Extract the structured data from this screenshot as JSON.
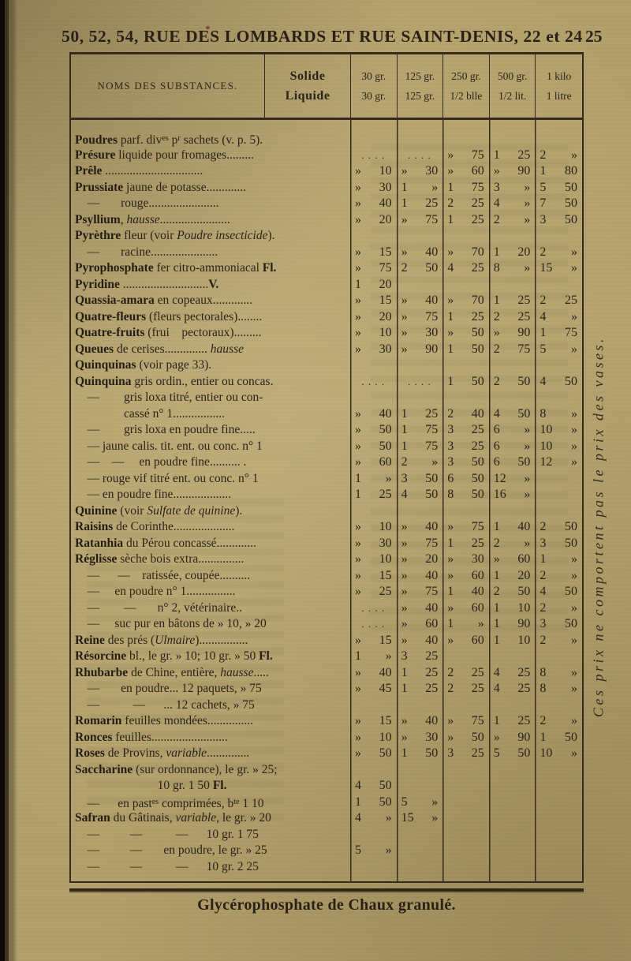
{
  "page": {
    "header": "50, 52, 54, RUE DES LOMBARDS ET RUE SAINT-DENIS, 22 et 24",
    "page_number": "25",
    "side_note": "Ces prix ne comportent pas le prix des vases.",
    "footer": "Glycérophosphate de Chaux granulé."
  },
  "colors": {
    "paper": "#b3a06b",
    "ink": "#2a231a"
  },
  "table": {
    "header": {
      "names_label": "NOMS DES SUBSTANCES.",
      "form_labels": [
        "Solide",
        "Liquide"
      ],
      "columns": [
        {
          "top": "30 gr.",
          "bottom": "30 gr."
        },
        {
          "top": "125 gr.",
          "bottom": "125 gr."
        },
        {
          "top": "250 gr.",
          "bottom": [
            {
              "t": "1/2 b"
            },
            {
              "t": "lle",
              "s": "sup"
            }
          ]
        },
        {
          "top": "500 gr.",
          "bottom": "1/2 lit."
        },
        {
          "top": "1 kilo",
          "bottom": "1 litre"
        }
      ]
    },
    "rows": [
      {
        "name": [
          {
            "t": "Poudres",
            "s": "b"
          },
          {
            "t": " parf. div"
          },
          {
            "t": "es",
            "s": "sup"
          },
          {
            "t": " p"
          },
          {
            "t": "r",
            "s": "sup"
          },
          {
            "t": " sachets (v. p. 5)."
          }
        ],
        "prices": [
          "",
          "",
          "",
          "",
          ""
        ]
      },
      {
        "name": [
          {
            "t": "Présure",
            "s": "b"
          },
          {
            "t": " liquide pour fromages........."
          }
        ],
        "prices": [
          ". . . .",
          ". . . .",
          "» 75",
          "1 25",
          "2 »"
        ]
      },
      {
        "name": [
          {
            "t": "Prêle",
            "s": "b"
          },
          {
            "t": " ................................"
          }
        ],
        "prices": [
          "» 10",
          "» 30",
          "» 60",
          "» 90",
          "1 80"
        ]
      },
      {
        "name": [
          {
            "t": "Prussiate",
            "s": "b"
          },
          {
            "t": " jaune de potasse............."
          }
        ],
        "prices": [
          "» 30",
          "1 »",
          "1 75",
          "3 »",
          "5 50"
        ]
      },
      {
        "name": [
          {
            "t": "    —       rouge......................."
          }
        ],
        "prices": [
          "» 40",
          "1 25",
          "2 25",
          "4 »",
          "7 50"
        ]
      },
      {
        "name": [
          {
            "t": "Psyllium",
            "s": "b"
          },
          {
            "t": ", "
          },
          {
            "t": "hausse",
            "s": "i"
          },
          {
            "t": "......................."
          }
        ],
        "prices": [
          "» 20",
          "» 75",
          "1 25",
          "2 »",
          "3 50"
        ]
      },
      {
        "name": [
          {
            "t": "Pyrèthre",
            "s": "b"
          },
          {
            "t": " fleur (voir "
          },
          {
            "t": "Poudre insecticide",
            "s": "i"
          },
          {
            "t": ")."
          }
        ],
        "prices": [
          "",
          "",
          "",
          "",
          ""
        ]
      },
      {
        "name": [
          {
            "t": "    —       racine......................"
          }
        ],
        "prices": [
          "» 15",
          "» 40",
          "» 70",
          "1 20",
          "2 »"
        ]
      },
      {
        "name": [
          {
            "t": "Pyrophosphate",
            "s": "b"
          },
          {
            "t": " fer citro-ammoniacal "
          },
          {
            "t": "Fl.",
            "s": "b"
          }
        ],
        "prices": [
          "» 75",
          "2 50",
          "4 25",
          "8 »",
          "15 »"
        ]
      },
      {
        "name": [
          {
            "t": "Pyridine",
            "s": "b"
          },
          {
            "t": " ............................"
          },
          {
            "t": "V.",
            "s": "b"
          }
        ],
        "prices": [
          "1 20",
          "",
          "",
          "",
          ""
        ]
      },
      {
        "name": [
          {
            "t": "Quassia-amara",
            "s": "b"
          },
          {
            "t": " en copeaux............."
          }
        ],
        "prices": [
          "» 15",
          "» 40",
          "» 70",
          "1 25",
          "2 25"
        ]
      },
      {
        "name": [
          {
            "t": "Quatre-fleurs",
            "s": "b"
          },
          {
            "t": " (fleurs pectorales)........"
          }
        ],
        "prices": [
          "» 20",
          "» 75",
          "1 25",
          "2 25",
          "4 »"
        ]
      },
      {
        "name": [
          {
            "t": "Quatre-fruits",
            "s": "b"
          },
          {
            "t": " (frui    pectoraux)........."
          }
        ],
        "prices": [
          "» 10",
          "» 30",
          "» 50",
          "» 90",
          "1 75"
        ]
      },
      {
        "name": [
          {
            "t": "Queues",
            "s": "b"
          },
          {
            "t": " de cerises.............. "
          },
          {
            "t": "hausse",
            "s": "i"
          }
        ],
        "prices": [
          "» 30",
          "» 90",
          "1 50",
          "2 75",
          "5 »"
        ]
      },
      {
        "name": [
          {
            "t": "Quinquinas",
            "s": "b"
          },
          {
            "t": " (voir page 33)."
          }
        ],
        "prices": [
          "",
          "",
          "",
          "",
          ""
        ]
      },
      {
        "name": [
          {
            "t": "Quinquina",
            "s": "b"
          },
          {
            "t": " gris ordin., entier ou concas."
          }
        ],
        "prices": [
          ". . . .",
          ". . . .",
          "1 50",
          "2 50",
          "4 50"
        ]
      },
      {
        "name": [
          {
            "t": "    —        gris loxa titré, entier ou con-"
          }
        ],
        "prices": [
          "",
          "",
          "",
          "",
          ""
        ]
      },
      {
        "name": [
          {
            "t": "                cassé n° 1................."
          }
        ],
        "prices": [
          "» 40",
          "1 25",
          "2 40",
          "4 50",
          "8 »"
        ]
      },
      {
        "name": [
          {
            "t": "    —        gris loxa en poudre fine....."
          }
        ],
        "prices": [
          "» 50",
          "1 75",
          "3 25",
          "6 »",
          "10 »"
        ]
      },
      {
        "name": [
          {
            "t": "    — jaune calis. tit. ent. ou conc. n° 1"
          }
        ],
        "prices": [
          "» 50",
          "1 75",
          "3 25",
          "6 »",
          "10 »"
        ]
      },
      {
        "name": [
          {
            "t": "    —    —     en poudre fine.......... ."
          }
        ],
        "prices": [
          "» 60",
          "2 »",
          "3 50",
          "6 50",
          "12 »"
        ]
      },
      {
        "name": [
          {
            "t": "    — rouge vif titré ent. ou conc. n° 1"
          }
        ],
        "prices": [
          "1 »",
          "3 50",
          "6 50",
          "12 »",
          ""
        ]
      },
      {
        "name": [
          {
            "t": "    — en poudre fine..................."
          }
        ],
        "prices": [
          "1 25",
          "4 50",
          "8 50",
          "16 »",
          ""
        ]
      },
      {
        "name": [
          {
            "t": "Quinine",
            "s": "b"
          },
          {
            "t": " (voir "
          },
          {
            "t": "Sulfate de quinine",
            "s": "i"
          },
          {
            "t": ")."
          }
        ],
        "prices": [
          "",
          "",
          "",
          "",
          ""
        ]
      },
      {
        "name": [
          {
            "t": "Raisins",
            "s": "b"
          },
          {
            "t": " de Corinthe...................."
          }
        ],
        "prices": [
          "» 10",
          "» 40",
          "» 75",
          "1 40",
          "2 50"
        ]
      },
      {
        "name": [
          {
            "t": "Ratanhia",
            "s": "b"
          },
          {
            "t": " du Pérou concassé............."
          }
        ],
        "prices": [
          "» 30",
          "» 75",
          "1 25",
          "2 »",
          "3 50"
        ]
      },
      {
        "name": [
          {
            "t": "Réglisse",
            "s": "b"
          },
          {
            "t": " sèche bois extra..............."
          }
        ],
        "prices": [
          "» 10",
          "» 20",
          "» 30",
          "» 60",
          "1 »"
        ]
      },
      {
        "name": [
          {
            "t": "    —      —    ratissée, coupée.........."
          }
        ],
        "prices": [
          "» 15",
          "» 40",
          "» 60",
          "1 20",
          "2 »"
        ]
      },
      {
        "name": [
          {
            "t": "    —     en poudre n° 1................"
          }
        ],
        "prices": [
          "» 25",
          "» 75",
          "1 40",
          "2 50",
          "4 50"
        ]
      },
      {
        "name": [
          {
            "t": "    —        —       n° 2, vétérinaire.."
          }
        ],
        "prices": [
          ". . . .",
          "» 40",
          "» 60",
          "1 10",
          "2 »"
        ]
      },
      {
        "name": [
          {
            "t": "    —     suc pur en bâtons de » 10, » 20"
          }
        ],
        "prices": [
          ". . . .",
          "» 60",
          "1 »",
          "1 90",
          "3 50"
        ]
      },
      {
        "name": [
          {
            "t": "Reine",
            "s": "b"
          },
          {
            "t": " des prés ("
          },
          {
            "t": "Ulmaire",
            "s": "i"
          },
          {
            "t": ")................"
          }
        ],
        "prices": [
          "» 15",
          "» 40",
          "» 60",
          "1 10",
          "2 »"
        ]
      },
      {
        "name": [
          {
            "t": "Résorcine",
            "s": "b"
          },
          {
            "t": " bl., le gr. » 10; 10 gr. » 50 "
          },
          {
            "t": "Fl.",
            "s": "b"
          }
        ],
        "prices": [
          "1 »",
          "3 25",
          "",
          "",
          ""
        ]
      },
      {
        "name": [
          {
            "t": "Rhubarbe",
            "s": "b"
          },
          {
            "t": " de Chine, entière, "
          },
          {
            "t": "hausse",
            "s": "i"
          },
          {
            "t": "....."
          }
        ],
        "prices": [
          "» 40",
          "1 25",
          "2 25",
          "4 25",
          "8 »"
        ]
      },
      {
        "name": [
          {
            "t": "    —       en poudre... 12 paquets, » 75"
          }
        ],
        "prices": [
          "» 45",
          "1 25",
          "2 25",
          "4 25",
          "8 »"
        ]
      },
      {
        "name": [
          {
            "t": "    —           —      ... 12 cachets, » 75"
          }
        ],
        "prices": [
          "",
          "",
          "",
          "",
          ""
        ]
      },
      {
        "name": [
          {
            "t": "Romarin",
            "s": "b"
          },
          {
            "t": " feuilles mondées..............."
          }
        ],
        "prices": [
          "» 15",
          "» 40",
          "» 75",
          "1 25",
          "2 »"
        ]
      },
      {
        "name": [
          {
            "t": "Ronces",
            "s": "b"
          },
          {
            "t": " feuilles........................."
          }
        ],
        "prices": [
          "» 10",
          "» 30",
          "» 50",
          "» 90",
          "1 50"
        ]
      },
      {
        "name": [
          {
            "t": "Roses",
            "s": "b"
          },
          {
            "t": " de Provins, "
          },
          {
            "t": "variable",
            "s": "i"
          },
          {
            "t": ".............."
          }
        ],
        "prices": [
          "» 50",
          "1 50",
          "3 25",
          "5 50",
          "10 »"
        ]
      },
      {
        "name": [
          {
            "t": "Saccharine",
            "s": "b"
          },
          {
            "t": " (sur ordonnance), le gr. » 25;"
          }
        ],
        "prices": [
          "",
          "",
          "",
          "",
          ""
        ]
      },
      {
        "name": [
          {
            "t": "                           10 gr. 1 50 "
          },
          {
            "t": "Fl.",
            "s": "b"
          }
        ],
        "prices": [
          "4 50",
          "",
          "",
          "",
          ""
        ]
      },
      {
        "name": [
          {
            "t": "    —      en past"
          },
          {
            "t": "es",
            "s": "sup"
          },
          {
            "t": " comprimées, b"
          },
          {
            "t": "te",
            "s": "sup"
          },
          {
            "t": " 1 10"
          }
        ],
        "prices": [
          "1 50",
          "5 »",
          "",
          "",
          ""
        ]
      },
      {
        "name": [
          {
            "t": "Safran",
            "s": "b"
          },
          {
            "t": " du Gâtinais, "
          },
          {
            "t": "variable",
            "s": "i"
          },
          {
            "t": ", le gr. » 20"
          }
        ],
        "prices": [
          "4 »",
          "15 »",
          "",
          "",
          ""
        ]
      },
      {
        "name": [
          {
            "t": "    —          —           —      10 gr. 1 75"
          }
        ],
        "prices": [
          "",
          "",
          "",
          "",
          ""
        ]
      },
      {
        "name": [
          {
            "t": "    —          —       en poudre, le gr. » 25"
          }
        ],
        "prices": [
          "5 »",
          "",
          "",
          "",
          ""
        ]
      },
      {
        "name": [
          {
            "t": "    —          —           —      10 gr. 2 25"
          }
        ],
        "prices": [
          "",
          "",
          "",
          "",
          ""
        ]
      }
    ]
  }
}
